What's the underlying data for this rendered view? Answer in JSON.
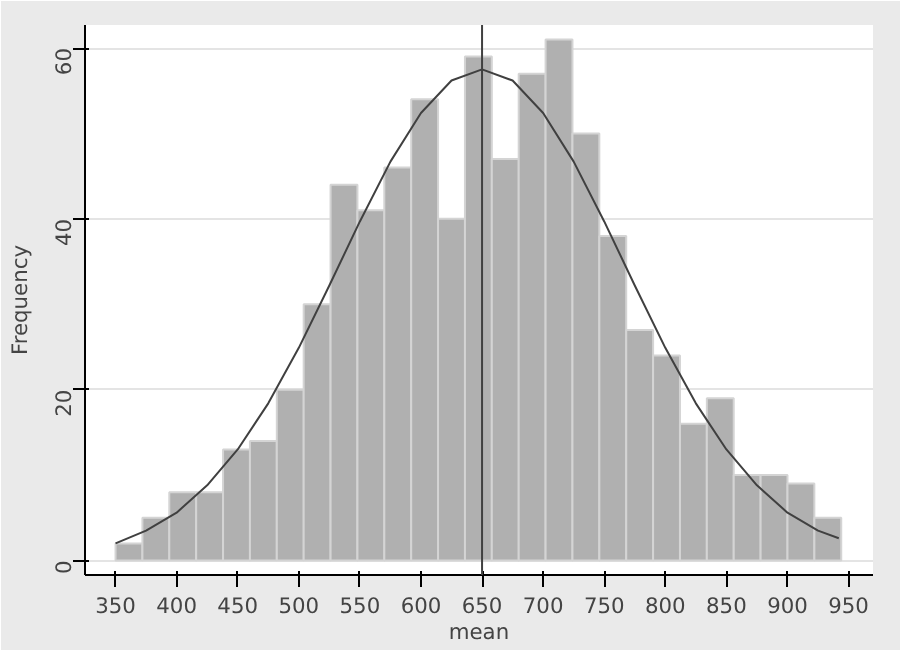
{
  "chart_data": {
    "type": "histogram",
    "xlabel": "mean",
    "ylabel": "Frequency",
    "bins": [
      350,
      372,
      394,
      416,
      438,
      460,
      482,
      504,
      526,
      548,
      570,
      592,
      614,
      636,
      658,
      680,
      702,
      724,
      746,
      768,
      790,
      812,
      834,
      856,
      878,
      900,
      922,
      944
    ],
    "values": [
      2,
      5,
      8,
      8,
      13,
      14,
      20,
      30,
      44,
      41,
      46,
      54,
      40,
      59,
      47,
      57,
      61,
      50,
      38,
      27,
      24,
      16,
      19,
      10,
      10,
      9,
      5
    ],
    "color": "#b0b0b0",
    "series": [
      {
        "type": "line",
        "color": "#404040",
        "x": [
          350,
          375,
          400,
          425,
          450,
          475,
          500,
          525,
          550,
          575,
          600,
          625,
          650,
          675,
          700,
          725,
          750,
          775,
          800,
          825,
          850,
          875,
          900,
          925,
          942
        ],
        "values": [
          2.0,
          3.5,
          5.6,
          8.8,
          13.0,
          18.4,
          24.9,
          32.2,
          39.7,
          46.7,
          52.4,
          56.2,
          57.5,
          56.2,
          52.4,
          46.7,
          39.7,
          32.2,
          24.9,
          18.4,
          13.0,
          8.8,
          5.6,
          3.5,
          2.6
        ]
      }
    ],
    "ref_lines": [
      {
        "axis": "x",
        "value": 650,
        "color": "#404040"
      }
    ],
    "xlim": [
      325,
      970
    ],
    "ylim": [
      -1.7,
      62.7
    ],
    "xticks": [
      350,
      400,
      450,
      500,
      550,
      600,
      650,
      700,
      750,
      800,
      850,
      900,
      950
    ],
    "yticks": [
      0,
      20,
      40,
      60
    ],
    "grid": "y"
  }
}
